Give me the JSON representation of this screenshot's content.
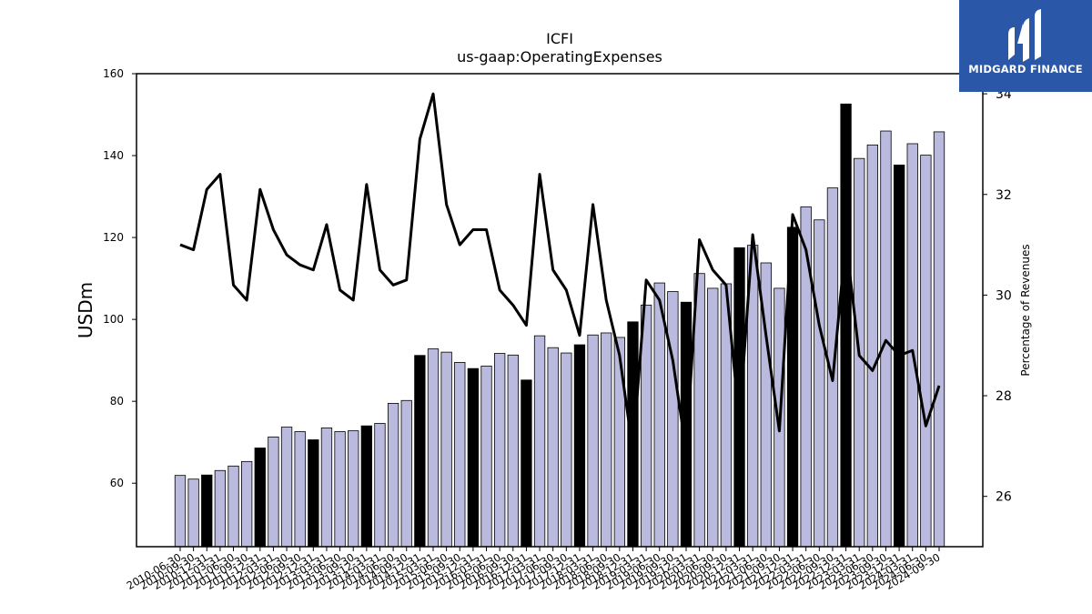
{
  "chart_data": {
    "type": "bar",
    "title": "ICFI",
    "subtitle": "us-gaap:OperatingExpenses",
    "ylabel": "USDm",
    "y2label": "Percentage of Revenues",
    "ylim": [
      44.5,
      160
    ],
    "y2lim": [
      25,
      34.4
    ],
    "yticks": [
      60,
      80,
      100,
      120,
      140,
      160
    ],
    "y2ticks": [
      26,
      28,
      30,
      32,
      34
    ],
    "categories": [
      "2010-06-30",
      "2010-09-30",
      "2010-12-31",
      "2011-03-31",
      "2011-06-30",
      "2011-09-30",
      "2011-12-31",
      "2012-03-31",
      "2012-06-30",
      "2012-09-30",
      "2012-12-31",
      "2013-03-31",
      "2013-06-30",
      "2013-09-30",
      "2013-12-31",
      "2014-03-31",
      "2014-06-30",
      "2014-09-30",
      "2014-12-31",
      "2015-03-31",
      "2015-06-30",
      "2015-09-30",
      "2015-12-31",
      "2016-03-31",
      "2016-06-30",
      "2016-09-30",
      "2016-12-31",
      "2017-03-31",
      "2017-06-30",
      "2017-09-30",
      "2017-12-31",
      "2018-03-31",
      "2018-06-30",
      "2018-09-30",
      "2018-12-31",
      "2019-03-31",
      "2019-06-30",
      "2019-09-30",
      "2019-12-31",
      "2020-03-31",
      "2020-06-30",
      "2020-09-30",
      "2020-12-31",
      "2021-03-31",
      "2021-06-30",
      "2021-09-30",
      "2021-12-31",
      "2022-03-31",
      "2022-06-30",
      "2022-09-30",
      "2022-12-31",
      "2023-03-31",
      "2023-06-30",
      "2023-09-30",
      "2023-12-31",
      "2024-03-31",
      "2024-06-30",
      "2024-09-30"
    ],
    "series": [
      {
        "type": "bar",
        "values": [
          61.9,
          61.0,
          62.0,
          63.1,
          64.2,
          65.3,
          68.6,
          71.3,
          73.7,
          72.6,
          70.6,
          73.5,
          72.6,
          72.8,
          74.0,
          74.6,
          79.5,
          80.2,
          91.2,
          92.8,
          92.0,
          89.5,
          88.0,
          88.6,
          91.7,
          91.3,
          85.2,
          96.0,
          93.1,
          91.8,
          93.8,
          96.2,
          96.7,
          95.6,
          99.4,
          103.5,
          108.9,
          106.8,
          104.2,
          111.2,
          107.6,
          108.7,
          117.5,
          118.1,
          113.8,
          107.6,
          122.5,
          127.5,
          124.3,
          132.1,
          152.6,
          139.3,
          142.6,
          146.0,
          137.7,
          142.9,
          140.1,
          145.8
        ],
        "colors": {
          "annual": "#000000",
          "quarterly": "#babade"
        },
        "annual_every": 4,
        "annual_offset": 2
      },
      {
        "type": "line",
        "color": "#000000",
        "values": [
          31.0,
          30.9,
          32.1,
          32.4,
          30.2,
          29.9,
          32.1,
          31.3,
          30.8,
          30.6,
          30.5,
          31.4,
          30.1,
          29.9,
          32.2,
          30.5,
          30.2,
          30.3,
          33.1,
          34.0,
          31.8,
          31.0,
          31.3,
          31.3,
          30.1,
          29.8,
          29.4,
          32.4,
          30.5,
          30.1,
          29.2,
          31.8,
          29.9,
          28.8,
          26.9,
          30.3,
          29.9,
          28.7,
          26.9,
          31.1,
          30.5,
          30.2,
          27.5,
          31.2,
          29.2,
          27.3,
          31.6,
          30.9,
          29.4,
          28.3,
          31.1,
          28.8,
          28.5,
          29.1,
          28.8,
          28.9,
          27.4,
          28.2
        ]
      }
    ],
    "grid": false,
    "legend": "none"
  },
  "logo": {
    "text": "MIDGARD FINANCE"
  }
}
